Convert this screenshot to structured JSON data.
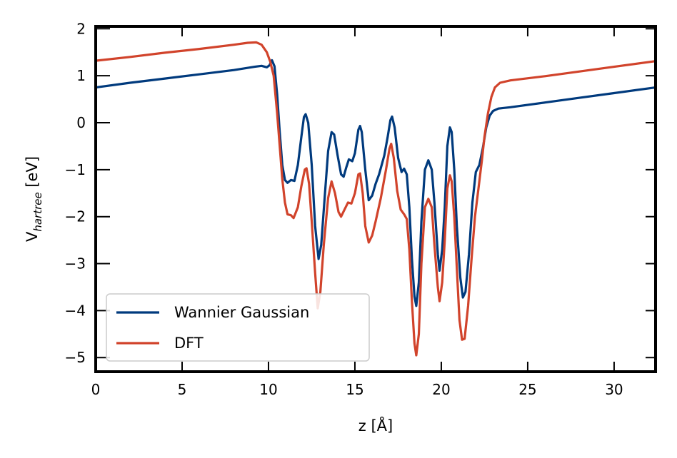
{
  "chart_data": {
    "type": "line",
    "xlabel": "z [Å]",
    "ylabel": {
      "base": "V",
      "sub": "hartree",
      "unit": " [eV]"
    },
    "xlim": [
      0,
      32.4
    ],
    "ylim": [
      -5.3,
      2.05
    ],
    "xticks": [
      0,
      5,
      10,
      15,
      20,
      25,
      30
    ],
    "yticks": [
      -5,
      -4,
      -3,
      -2,
      -1,
      0,
      1,
      2
    ],
    "ytick_labels": [
      "−5",
      "−4",
      "−3",
      "−2",
      "−1",
      "0",
      "1",
      "2"
    ],
    "grid": false,
    "legend_position": "lower-left",
    "series": [
      {
        "name": "Wannier Gaussian",
        "color": "#003a7d",
        "points": [
          [
            0,
            0.75
          ],
          [
            2,
            0.85
          ],
          [
            4,
            0.94
          ],
          [
            6,
            1.03
          ],
          [
            8,
            1.12
          ],
          [
            9.2,
            1.19
          ],
          [
            9.6,
            1.21
          ],
          [
            9.9,
            1.18
          ],
          [
            10.05,
            1.22
          ],
          [
            10.2,
            1.33
          ],
          [
            10.35,
            1.2
          ],
          [
            10.5,
            0.6
          ],
          [
            10.65,
            -0.2
          ],
          [
            10.8,
            -0.9
          ],
          [
            10.95,
            -1.22
          ],
          [
            11.1,
            -1.28
          ],
          [
            11.3,
            -1.22
          ],
          [
            11.5,
            -1.24
          ],
          [
            11.7,
            -0.9
          ],
          [
            11.9,
            -0.3
          ],
          [
            12.05,
            0.12
          ],
          [
            12.15,
            0.18
          ],
          [
            12.3,
            0.0
          ],
          [
            12.5,
            -0.9
          ],
          [
            12.7,
            -2.2
          ],
          [
            12.9,
            -2.9
          ],
          [
            13.05,
            -2.6
          ],
          [
            13.25,
            -1.6
          ],
          [
            13.45,
            -0.6
          ],
          [
            13.65,
            -0.2
          ],
          [
            13.8,
            -0.25
          ],
          [
            14.0,
            -0.7
          ],
          [
            14.2,
            -1.1
          ],
          [
            14.35,
            -1.15
          ],
          [
            14.5,
            -0.95
          ],
          [
            14.65,
            -0.78
          ],
          [
            14.85,
            -0.82
          ],
          [
            15.0,
            -0.65
          ],
          [
            15.2,
            -0.15
          ],
          [
            15.3,
            -0.07
          ],
          [
            15.4,
            -0.2
          ],
          [
            15.6,
            -1.0
          ],
          [
            15.8,
            -1.65
          ],
          [
            16.0,
            -1.55
          ],
          [
            16.2,
            -1.3
          ],
          [
            16.4,
            -1.1
          ],
          [
            16.7,
            -0.7
          ],
          [
            16.9,
            -0.3
          ],
          [
            17.05,
            0.05
          ],
          [
            17.15,
            0.13
          ],
          [
            17.3,
            -0.1
          ],
          [
            17.5,
            -0.75
          ],
          [
            17.7,
            -1.05
          ],
          [
            17.85,
            -0.98
          ],
          [
            18.0,
            -1.1
          ],
          [
            18.15,
            -1.8
          ],
          [
            18.3,
            -2.9
          ],
          [
            18.45,
            -3.7
          ],
          [
            18.55,
            -3.9
          ],
          [
            18.7,
            -3.4
          ],
          [
            18.85,
            -2.1
          ],
          [
            19.05,
            -1.0
          ],
          [
            19.25,
            -0.8
          ],
          [
            19.45,
            -1.0
          ],
          [
            19.6,
            -1.7
          ],
          [
            19.8,
            -2.8
          ],
          [
            19.9,
            -3.15
          ],
          [
            20.05,
            -2.7
          ],
          [
            20.2,
            -1.8
          ],
          [
            20.35,
            -0.5
          ],
          [
            20.5,
            -0.1
          ],
          [
            20.6,
            -0.2
          ],
          [
            20.75,
            -1.0
          ],
          [
            20.9,
            -2.2
          ],
          [
            21.1,
            -3.3
          ],
          [
            21.25,
            -3.72
          ],
          [
            21.4,
            -3.6
          ],
          [
            21.6,
            -2.8
          ],
          [
            21.8,
            -1.7
          ],
          [
            22.0,
            -1.05
          ],
          [
            22.2,
            -0.9
          ],
          [
            22.4,
            -0.55
          ],
          [
            22.6,
            -0.1
          ],
          [
            22.8,
            0.15
          ],
          [
            23.0,
            0.25
          ],
          [
            23.3,
            0.3
          ],
          [
            24,
            0.33
          ],
          [
            26,
            0.43
          ],
          [
            28,
            0.53
          ],
          [
            30,
            0.63
          ],
          [
            32.4,
            0.75
          ]
        ]
      },
      {
        "name": "DFT",
        "color": "#d1432b",
        "points": [
          [
            0,
            1.32
          ],
          [
            2,
            1.4
          ],
          [
            4,
            1.49
          ],
          [
            6,
            1.57
          ],
          [
            8,
            1.66
          ],
          [
            8.8,
            1.7
          ],
          [
            9.3,
            1.71
          ],
          [
            9.6,
            1.66
          ],
          [
            9.9,
            1.5
          ],
          [
            10.1,
            1.3
          ],
          [
            10.3,
            1.0
          ],
          [
            10.5,
            0.2
          ],
          [
            10.65,
            -0.5
          ],
          [
            10.8,
            -1.2
          ],
          [
            10.95,
            -1.7
          ],
          [
            11.1,
            -1.95
          ],
          [
            11.3,
            -1.97
          ],
          [
            11.45,
            -2.03
          ],
          [
            11.7,
            -1.8
          ],
          [
            11.9,
            -1.35
          ],
          [
            12.1,
            -1.0
          ],
          [
            12.2,
            -0.97
          ],
          [
            12.35,
            -1.3
          ],
          [
            12.5,
            -2.1
          ],
          [
            12.7,
            -3.2
          ],
          [
            12.85,
            -3.95
          ],
          [
            13.0,
            -3.6
          ],
          [
            13.2,
            -2.6
          ],
          [
            13.45,
            -1.6
          ],
          [
            13.65,
            -1.25
          ],
          [
            13.85,
            -1.5
          ],
          [
            14.05,
            -1.9
          ],
          [
            14.2,
            -2.0
          ],
          [
            14.4,
            -1.85
          ],
          [
            14.6,
            -1.7
          ],
          [
            14.8,
            -1.72
          ],
          [
            15.0,
            -1.5
          ],
          [
            15.2,
            -1.1
          ],
          [
            15.3,
            -1.08
          ],
          [
            15.45,
            -1.5
          ],
          [
            15.6,
            -2.2
          ],
          [
            15.8,
            -2.55
          ],
          [
            16.0,
            -2.4
          ],
          [
            16.2,
            -2.1
          ],
          [
            16.5,
            -1.6
          ],
          [
            16.8,
            -1.0
          ],
          [
            17.0,
            -0.55
          ],
          [
            17.1,
            -0.45
          ],
          [
            17.25,
            -0.75
          ],
          [
            17.45,
            -1.45
          ],
          [
            17.65,
            -1.85
          ],
          [
            17.85,
            -1.95
          ],
          [
            18.0,
            -2.05
          ],
          [
            18.15,
            -2.7
          ],
          [
            18.3,
            -3.8
          ],
          [
            18.45,
            -4.7
          ],
          [
            18.55,
            -4.95
          ],
          [
            18.7,
            -4.5
          ],
          [
            18.85,
            -3.0
          ],
          [
            19.05,
            -1.8
          ],
          [
            19.25,
            -1.62
          ],
          [
            19.45,
            -1.8
          ],
          [
            19.6,
            -2.6
          ],
          [
            19.8,
            -3.5
          ],
          [
            19.9,
            -3.8
          ],
          [
            20.05,
            -3.4
          ],
          [
            20.2,
            -2.5
          ],
          [
            20.35,
            -1.4
          ],
          [
            20.5,
            -1.12
          ],
          [
            20.6,
            -1.25
          ],
          [
            20.75,
            -2.0
          ],
          [
            20.9,
            -3.1
          ],
          [
            21.05,
            -4.2
          ],
          [
            21.2,
            -4.62
          ],
          [
            21.35,
            -4.6
          ],
          [
            21.55,
            -3.9
          ],
          [
            21.75,
            -2.9
          ],
          [
            21.95,
            -2.0
          ],
          [
            22.15,
            -1.4
          ],
          [
            22.35,
            -0.8
          ],
          [
            22.5,
            -0.3
          ],
          [
            22.7,
            0.2
          ],
          [
            22.9,
            0.55
          ],
          [
            23.1,
            0.75
          ],
          [
            23.4,
            0.85
          ],
          [
            24,
            0.9
          ],
          [
            26,
            0.99
          ],
          [
            28,
            1.09
          ],
          [
            30,
            1.19
          ],
          [
            32.4,
            1.31
          ]
        ]
      }
    ]
  }
}
